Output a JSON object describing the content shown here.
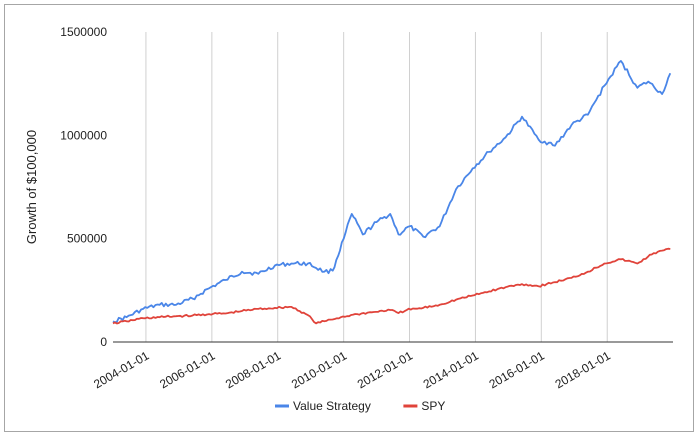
{
  "chart_data": {
    "type": "line",
    "title": "",
    "xlabel": "",
    "ylabel": "Growth of $100,000",
    "x_ticks": [
      "2004-01-01",
      "2006-01-01",
      "2008-01-01",
      "2010-01-01",
      "2012-01-01",
      "2014-01-01",
      "2016-01-01",
      "2018-01-01"
    ],
    "y_ticks": [
      0,
      500000,
      1000000,
      1500000
    ],
    "xlim": [
      "2003-01-01",
      "2019-12-31"
    ],
    "ylim": [
      0,
      1500000
    ],
    "grid": "vertical",
    "legend_position": "bottom",
    "series": [
      {
        "name": "Value Strategy",
        "color": "#4a86e8",
        "points": [
          [
            "2003-01-01",
            100000
          ],
          [
            "2003-06-01",
            120000
          ],
          [
            "2003-12-01",
            160000
          ],
          [
            "2004-06-01",
            180000
          ],
          [
            "2004-12-01",
            180000
          ],
          [
            "2005-06-01",
            210000
          ],
          [
            "2005-12-01",
            260000
          ],
          [
            "2006-06-01",
            300000
          ],
          [
            "2006-12-01",
            340000
          ],
          [
            "2007-06-01",
            330000
          ],
          [
            "2007-12-01",
            370000
          ],
          [
            "2008-06-01",
            380000
          ],
          [
            "2008-12-01",
            380000
          ],
          [
            "2009-06-01",
            340000
          ],
          [
            "2009-09-01",
            345000
          ],
          [
            "2010-01-01",
            500000
          ],
          [
            "2010-04-01",
            620000
          ],
          [
            "2010-08-01",
            520000
          ],
          [
            "2011-01-01",
            580000
          ],
          [
            "2011-06-01",
            620000
          ],
          [
            "2011-09-01",
            520000
          ],
          [
            "2012-01-01",
            560000
          ],
          [
            "2012-06-01",
            510000
          ],
          [
            "2012-12-01",
            560000
          ],
          [
            "2013-06-01",
            740000
          ],
          [
            "2013-12-01",
            840000
          ],
          [
            "2014-06-01",
            920000
          ],
          [
            "2014-12-01",
            990000
          ],
          [
            "2015-06-01",
            1090000
          ],
          [
            "2015-12-01",
            980000
          ],
          [
            "2016-06-01",
            950000
          ],
          [
            "2016-12-01",
            1050000
          ],
          [
            "2017-06-01",
            1100000
          ],
          [
            "2017-12-01",
            1240000
          ],
          [
            "2018-06-01",
            1360000
          ],
          [
            "2018-12-01",
            1230000
          ],
          [
            "2019-04-01",
            1260000
          ],
          [
            "2019-09-01",
            1200000
          ],
          [
            "2019-12-01",
            1300000
          ]
        ]
      },
      {
        "name": "SPY",
        "color": "#e0433a",
        "points": [
          [
            "2003-01-01",
            90000
          ],
          [
            "2003-06-01",
            100000
          ],
          [
            "2003-12-01",
            115000
          ],
          [
            "2004-06-01",
            120000
          ],
          [
            "2004-12-01",
            125000
          ],
          [
            "2005-06-01",
            128000
          ],
          [
            "2005-12-01",
            135000
          ],
          [
            "2006-06-01",
            138000
          ],
          [
            "2006-12-01",
            150000
          ],
          [
            "2007-06-01",
            160000
          ],
          [
            "2007-12-01",
            165000
          ],
          [
            "2008-06-01",
            170000
          ],
          [
            "2008-12-01",
            130000
          ],
          [
            "2009-03-01",
            90000
          ],
          [
            "2009-06-01",
            100000
          ],
          [
            "2009-12-01",
            120000
          ],
          [
            "2010-06-01",
            135000
          ],
          [
            "2010-12-01",
            145000
          ],
          [
            "2011-06-01",
            155000
          ],
          [
            "2011-09-01",
            140000
          ],
          [
            "2011-12-01",
            155000
          ],
          [
            "2012-06-01",
            165000
          ],
          [
            "2012-12-01",
            180000
          ],
          [
            "2013-06-01",
            205000
          ],
          [
            "2013-12-01",
            225000
          ],
          [
            "2014-06-01",
            245000
          ],
          [
            "2014-12-01",
            265000
          ],
          [
            "2015-06-01",
            280000
          ],
          [
            "2015-12-01",
            270000
          ],
          [
            "2016-06-01",
            290000
          ],
          [
            "2016-12-01",
            310000
          ],
          [
            "2017-06-01",
            340000
          ],
          [
            "2017-12-01",
            380000
          ],
          [
            "2018-06-01",
            400000
          ],
          [
            "2018-12-01",
            380000
          ],
          [
            "2019-06-01",
            430000
          ],
          [
            "2019-12-01",
            450000
          ]
        ]
      }
    ]
  }
}
